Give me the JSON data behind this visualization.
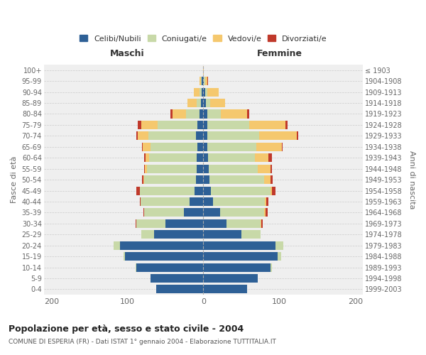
{
  "age_groups": [
    "0-4",
    "5-9",
    "10-14",
    "15-19",
    "20-24",
    "25-29",
    "30-34",
    "35-39",
    "40-44",
    "45-49",
    "50-54",
    "55-59",
    "60-64",
    "65-69",
    "70-74",
    "75-79",
    "80-84",
    "85-89",
    "90-94",
    "95-99",
    "100+"
  ],
  "birth_years": [
    "1999-2003",
    "1994-1998",
    "1989-1993",
    "1984-1988",
    "1979-1983",
    "1974-1978",
    "1969-1973",
    "1964-1968",
    "1959-1963",
    "1954-1958",
    "1949-1953",
    "1944-1948",
    "1939-1943",
    "1934-1938",
    "1929-1933",
    "1924-1928",
    "1919-1923",
    "1914-1918",
    "1909-1913",
    "1904-1908",
    "≤ 1903"
  ],
  "colors": {
    "celibi": "#2E6096",
    "coniugati": "#C8D9A8",
    "vedovi": "#F5C86E",
    "divorziati": "#C0392B"
  },
  "male": {
    "celibi": [
      62,
      70,
      88,
      103,
      110,
      65,
      50,
      26,
      18,
      12,
      10,
      9,
      9,
      8,
      10,
      8,
      5,
      3,
      2,
      2,
      0
    ],
    "coniugati": [
      0,
      0,
      1,
      2,
      8,
      17,
      38,
      52,
      65,
      72,
      68,
      65,
      62,
      62,
      62,
      52,
      18,
      6,
      3,
      1,
      0
    ],
    "vedovi": [
      0,
      0,
      0,
      0,
      0,
      0,
      0,
      0,
      0,
      0,
      1,
      3,
      5,
      10,
      14,
      22,
      18,
      12,
      8,
      2,
      0
    ],
    "divorziati": [
      0,
      0,
      0,
      0,
      0,
      0,
      1,
      1,
      1,
      4,
      2,
      1,
      2,
      1,
      2,
      4,
      2,
      0,
      0,
      0,
      0
    ]
  },
  "female": {
    "celibi": [
      58,
      72,
      88,
      98,
      95,
      50,
      30,
      22,
      13,
      10,
      8,
      7,
      6,
      5,
      5,
      5,
      5,
      3,
      2,
      1,
      0
    ],
    "coniugati": [
      0,
      0,
      2,
      4,
      10,
      25,
      45,
      58,
      68,
      78,
      72,
      65,
      62,
      65,
      68,
      55,
      18,
      6,
      3,
      1,
      0
    ],
    "vedovi": [
      0,
      0,
      0,
      0,
      0,
      0,
      1,
      2,
      2,
      2,
      8,
      16,
      18,
      33,
      50,
      48,
      35,
      20,
      15,
      3,
      1
    ],
    "divorziati": [
      0,
      0,
      0,
      0,
      0,
      0,
      2,
      3,
      3,
      5,
      3,
      2,
      4,
      1,
      2,
      3,
      2,
      0,
      0,
      1,
      0
    ]
  },
  "xlim": [
    -210,
    210
  ],
  "xticks": [
    -200,
    -100,
    0,
    100,
    200
  ],
  "xticklabels": [
    "200",
    "100",
    "0",
    "100",
    "200"
  ],
  "title1": "Popolazione per età, sesso e stato civile - 2004",
  "title2": "COMUNE DI ESPERIA (FR) - Dati ISTAT 1° gennaio 2004 - Elaborazione TUTTITALIA.IT",
  "ylabel_left": "Fasce di età",
  "ylabel_right": "Anni di nascita",
  "label_maschi": "Maschi",
  "label_femmine": "Femmine",
  "legend_labels": [
    "Celibi/Nubili",
    "Coniugati/e",
    "Vedovi/e",
    "Divorziati/e"
  ],
  "background_color": "#FFFFFF",
  "axes_bg": "#EFEFEF",
  "grid_color": "#CCCCCC"
}
